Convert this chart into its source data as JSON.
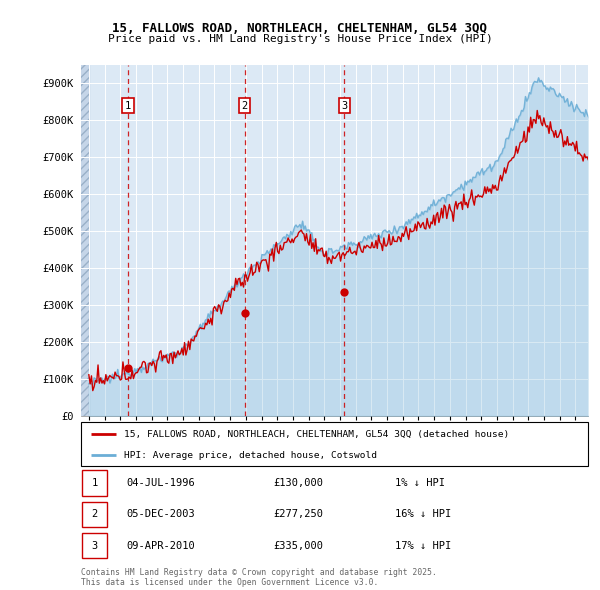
{
  "title_line1": "15, FALLOWS ROAD, NORTHLEACH, CHELTENHAM, GL54 3QQ",
  "title_line2": "Price paid vs. HM Land Registry's House Price Index (HPI)",
  "bg_color": "#dce9f5",
  "red_color": "#cc0000",
  "blue_color": "#6baed6",
  "ylim": [
    0,
    950000
  ],
  "yticks": [
    0,
    100000,
    200000,
    300000,
    400000,
    500000,
    600000,
    700000,
    800000,
    900000
  ],
  "ytick_labels": [
    "£0",
    "£100K",
    "£200K",
    "£300K",
    "£400K",
    "£500K",
    "£600K",
    "£700K",
    "£800K",
    "£900K"
  ],
  "xmin": 1993.5,
  "xmax": 2025.8,
  "sale_dates": [
    1996.5,
    2003.92,
    2010.27
  ],
  "sale_prices": [
    130000,
    277250,
    335000
  ],
  "sale_labels": [
    "1",
    "2",
    "3"
  ],
  "sale_date_strs": [
    "04-JUL-1996",
    "05-DEC-2003",
    "09-APR-2010"
  ],
  "sale_price_strs": [
    "£130,000",
    "£277,250",
    "£335,000"
  ],
  "sale_hpi_strs": [
    "1% ↓ HPI",
    "16% ↓ HPI",
    "17% ↓ HPI"
  ],
  "legend_line1": "15, FALLOWS ROAD, NORTHLEACH, CHELTENHAM, GL54 3QQ (detached house)",
  "legend_line2": "HPI: Average price, detached house, Cotswold",
  "footnote": "Contains HM Land Registry data © Crown copyright and database right 2025.\nThis data is licensed under the Open Government Licence v3.0."
}
